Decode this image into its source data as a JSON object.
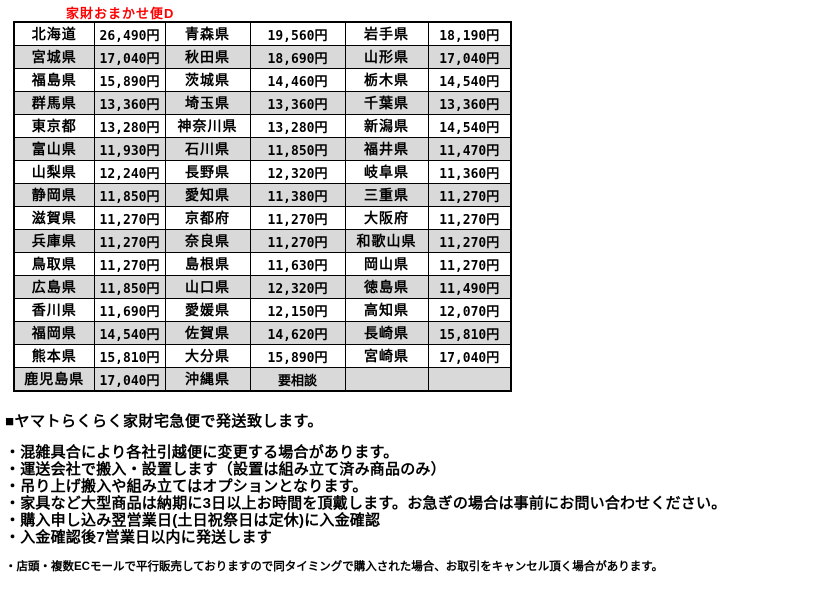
{
  "title": "家財おまかせ便D",
  "table": {
    "columns": [
      "prefecture",
      "price",
      "prefecture",
      "price",
      "prefecture",
      "price"
    ],
    "rows": [
      [
        "北海道",
        "26,490円",
        "青森県",
        "19,560円",
        "岩手県",
        "18,190円"
      ],
      [
        "宮城県",
        "17,040円",
        "秋田県",
        "18,690円",
        "山形県",
        "17,040円"
      ],
      [
        "福島県",
        "15,890円",
        "茨城県",
        "14,460円",
        "栃木県",
        "14,540円"
      ],
      [
        "群馬県",
        "13,360円",
        "埼玉県",
        "13,360円",
        "千葉県",
        "13,360円"
      ],
      [
        "東京都",
        "13,280円",
        "神奈川県",
        "13,280円",
        "新潟県",
        "14,540円"
      ],
      [
        "富山県",
        "11,930円",
        "石川県",
        "11,850円",
        "福井県",
        "11,470円"
      ],
      [
        "山梨県",
        "12,240円",
        "長野県",
        "12,320円",
        "岐阜県",
        "11,360円"
      ],
      [
        "静岡県",
        "11,850円",
        "愛知県",
        "11,380円",
        "三重県",
        "11,270円"
      ],
      [
        "滋賀県",
        "11,270円",
        "京都府",
        "11,270円",
        "大阪府",
        "11,270円"
      ],
      [
        "兵庫県",
        "11,270円",
        "奈良県",
        "11,270円",
        "和歌山県",
        "11,270円"
      ],
      [
        "鳥取県",
        "11,270円",
        "島根県",
        "11,630円",
        "岡山県",
        "11,270円"
      ],
      [
        "広島県",
        "11,850円",
        "山口県",
        "12,320円",
        "徳島県",
        "11,490円"
      ],
      [
        "香川県",
        "11,690円",
        "愛媛県",
        "12,150円",
        "高知県",
        "12,070円"
      ],
      [
        "福岡県",
        "14,540円",
        "佐賀県",
        "14,620円",
        "長崎県",
        "15,810円"
      ],
      [
        "熊本県",
        "15,810円",
        "大分県",
        "15,890円",
        "宮崎県",
        "17,040円"
      ],
      [
        "鹿児島県",
        "17,040円",
        "沖縄県",
        "要相談",
        "",
        ""
      ]
    ]
  },
  "notes": {
    "heading": "■ヤマトらくらく家財宅急便で発送致します。",
    "bullets": [
      "・混雑具合により各社引越便に変更する場合があります。",
      "・運送会社で搬入・設置します（設置は組み立て済み商品のみ）",
      "・吊り上げ搬入や組み立てはオプションとなります。",
      "・家具など大型商品は納期に3日以上お時間を頂戴します。お急ぎの場合は事前にお問い合わせください。",
      "・購入申し込み翌営業日(土日祝祭日は定休)に入金確認",
      "・入金確認後7営業日以内に発送します"
    ],
    "footnote": "・店頭・複数ECモールで平行販売しておりますので同タイミングで購入された場合、お取引をキャンセル頂く場合があります。"
  },
  "colors": {
    "title_text": "#ff0000",
    "alt_row_background": "#d9d9d9",
    "border": "#000000",
    "body_text": "#000000"
  }
}
